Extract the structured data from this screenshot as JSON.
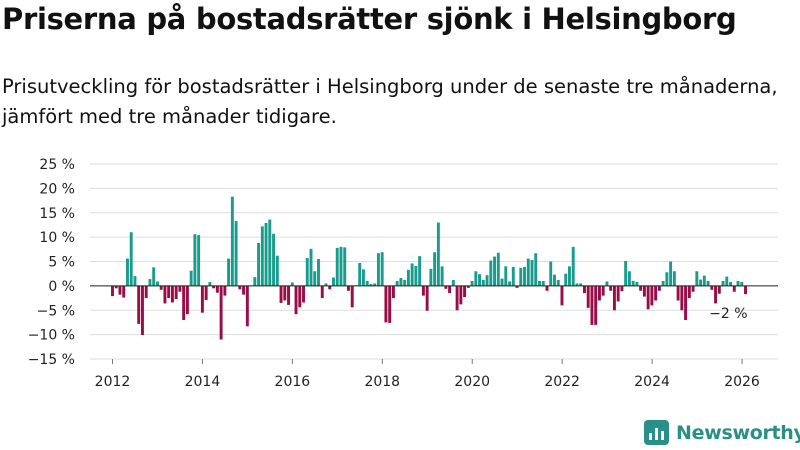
{
  "header": {
    "title": "Priserna på bostadsrätter sjönk i Helsingborg",
    "subtitle": "Prisutveckling för bostadsrätter i Helsingborg under de senaste tre månaderna, jämfört med tre månader tidigare."
  },
  "colors": {
    "positive": "#1a9c8c",
    "negative": "#980d47",
    "grid": "#dddddd",
    "brand": "#2a8f86"
  },
  "brand": {
    "name": "Newsworthy",
    "icon": "newsworthy-logo-icon"
  },
  "chart_data": {
    "type": "bar",
    "title": "Priserna på bostadsrätter sjönk i Helsingborg",
    "xlabel": "",
    "ylabel": "",
    "ylim": [
      -15,
      25
    ],
    "xlim": [
      2011.5,
      2026.8
    ],
    "grid": true,
    "legend": "none",
    "y_ticks": [
      25,
      20,
      15,
      10,
      5,
      0,
      -5,
      -10,
      -15
    ],
    "y_tick_labels": [
      "25 %",
      "20 %",
      "15 %",
      "10 %",
      "5 %",
      "0 %",
      "−5 %",
      "−10 %",
      "−15 %"
    ],
    "x_ticks": [
      2012,
      2014,
      2016,
      2018,
      2020,
      2022,
      2024,
      2026
    ],
    "x_tick_labels": [
      "2012",
      "2014",
      "2016",
      "2018",
      "2020",
      "2022",
      "2024",
      "2026"
    ],
    "start_year": 2012.0,
    "step_years": 0.0833,
    "values": [
      -2.1,
      -0.5,
      -1.8,
      -2.4,
      5.6,
      11.0,
      2.0,
      -7.8,
      -10.1,
      -2.5,
      1.4,
      3.8,
      0.9,
      -0.8,
      -3.6,
      -2.5,
      -3.4,
      -2.7,
      -1.2,
      -7.0,
      -5.8,
      3.1,
      10.6,
      10.4,
      -5.5,
      -2.9,
      0.8,
      -0.5,
      -1.4,
      -11.0,
      -2.0,
      5.6,
      18.3,
      13.3,
      -0.7,
      -1.8,
      -8.3,
      0.1,
      1.8,
      8.8,
      12.2,
      12.9,
      13.6,
      10.7,
      6.2,
      -3.5,
      -3.0,
      -3.9,
      0.7,
      -5.8,
      -4.4,
      -3.4,
      5.7,
      7.6,
      3.0,
      5.5,
      -2.5,
      0.5,
      -0.7,
      1.7,
      7.8,
      8.0,
      7.9,
      -1.0,
      -4.4,
      0.1,
      4.7,
      3.4,
      1.0,
      0.4,
      0.5,
      6.7,
      6.9,
      -7.5,
      -7.6,
      -2.5,
      1.0,
      1.6,
      1.2,
      3.3,
      4.6,
      4.1,
      6.1,
      -2.0,
      -5.1,
      3.5,
      6.9,
      13.0,
      4.0,
      -0.6,
      -1.5,
      1.2,
      -5.0,
      -3.8,
      -2.3,
      -0.4,
      1.0,
      3.0,
      2.4,
      1.2,
      2.2,
      5.2,
      6.0,
      6.8,
      1.5,
      4.0,
      0.9,
      3.9,
      -0.4,
      3.7,
      3.9,
      5.6,
      5.3,
      6.7,
      1.0,
      1.0,
      -1.0,
      5.0,
      2.3,
      1.2,
      -4.0,
      2.5,
      4.0,
      8.0,
      0.5,
      0.5,
      -1.5,
      -4.5,
      -8.0,
      -8.0,
      -3.0,
      -2.0,
      0.9,
      -1.0,
      -5.0,
      -3.2,
      -1.1,
      5.1,
      3.0,
      1.0,
      0.8,
      -1.0,
      -2.2,
      -4.8,
      -4.0,
      -3.0,
      -1.0,
      1.0,
      2.8,
      5.0,
      3.0,
      -3.0,
      -5.0,
      -7.0,
      -2.5,
      -1.2,
      3.0,
      1.3,
      2.1,
      1.0,
      -0.8,
      -3.6,
      -1.6,
      1.0,
      1.9,
      0.8,
      -1.2,
      1.0,
      0.8,
      -1.7
    ],
    "annotations": [
      {
        "text": "−2 %",
        "target": "last"
      }
    ]
  }
}
